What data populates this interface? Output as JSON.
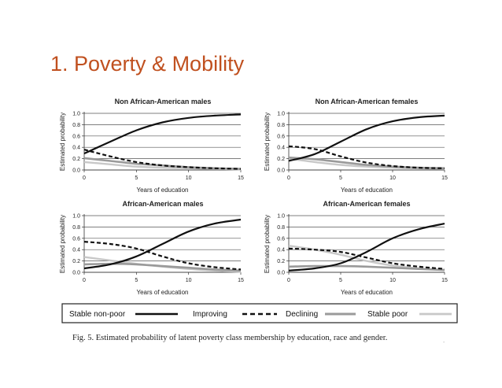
{
  "slide": {
    "title": "1. Poverty & Mobility"
  },
  "caption": "Fig. 5.  Estimated probability of latent poverty class membership by education, race and gender.",
  "fine_print": "-",
  "colors": {
    "stable_non_poor": "#111111",
    "improving": "#111111",
    "declining": "#9a9a9a",
    "stable_poor": "#c8c8c8"
  },
  "legend": [
    {
      "label": "Stable non-poor",
      "key": "stable_non_poor"
    },
    {
      "label": "Improving",
      "key": "improving"
    },
    {
      "label": "Declining",
      "key": "declining"
    },
    {
      "label": "Stable poor",
      "key": "stable_poor"
    }
  ],
  "chart_data": [
    {
      "type": "line",
      "title": "Non African-American males",
      "xlabel": "Years of education",
      "ylabel": "Estimated probability",
      "xlim": [
        0,
        15
      ],
      "ylim": [
        0,
        1
      ],
      "xticks": [
        0,
        5,
        10,
        15
      ],
      "yticks": [
        0.0,
        0.2,
        0.4,
        0.6,
        0.8,
        1.0
      ],
      "x": [
        0,
        2.5,
        5,
        7.5,
        10,
        12.5,
        15
      ],
      "grid": true,
      "series": [
        {
          "key": "stable_non_poor",
          "style": "solid",
          "values": [
            0.29,
            0.5,
            0.7,
            0.84,
            0.92,
            0.96,
            0.98
          ]
        },
        {
          "key": "improving",
          "style": "dashed",
          "values": [
            0.36,
            0.24,
            0.14,
            0.08,
            0.05,
            0.03,
            0.02
          ]
        },
        {
          "key": "declining",
          "style": "solid",
          "values": [
            0.21,
            0.16,
            0.11,
            0.08,
            0.05,
            0.03,
            0.02
          ]
        },
        {
          "key": "stable_poor",
          "style": "solid",
          "values": [
            0.14,
            0.1,
            0.06,
            0.04,
            0.03,
            0.02,
            0.01
          ]
        }
      ]
    },
    {
      "type": "line",
      "title": "Non African-American females",
      "xlabel": "Years of education",
      "ylabel": "Estimated probability",
      "xlim": [
        0,
        15
      ],
      "ylim": [
        0,
        1
      ],
      "xticks": [
        0,
        5,
        10,
        15
      ],
      "yticks": [
        0.0,
        0.2,
        0.4,
        0.6,
        0.8,
        1.0
      ],
      "x": [
        0,
        2.5,
        5,
        7.5,
        10,
        12.5,
        15
      ],
      "grid": true,
      "series": [
        {
          "key": "stable_non_poor",
          "style": "solid",
          "values": [
            0.16,
            0.28,
            0.5,
            0.72,
            0.86,
            0.93,
            0.96
          ]
        },
        {
          "key": "improving",
          "style": "dashed",
          "values": [
            0.42,
            0.37,
            0.24,
            0.13,
            0.07,
            0.04,
            0.03
          ]
        },
        {
          "key": "declining",
          "style": "solid",
          "values": [
            0.22,
            0.19,
            0.14,
            0.09,
            0.06,
            0.04,
            0.03
          ]
        },
        {
          "key": "stable_poor",
          "style": "solid",
          "values": [
            0.2,
            0.14,
            0.09,
            0.06,
            0.04,
            0.03,
            0.02
          ]
        }
      ]
    },
    {
      "type": "line",
      "title": "African-American males",
      "xlabel": "Years of education",
      "ylabel": "Estimated probability",
      "xlim": [
        0,
        15
      ],
      "ylim": [
        0,
        1
      ],
      "xticks": [
        0,
        5,
        10,
        15
      ],
      "yticks": [
        0.0,
        0.2,
        0.4,
        0.6,
        0.8,
        1.0
      ],
      "x": [
        0,
        2.5,
        5,
        7.5,
        10,
        12.5,
        15
      ],
      "grid": true,
      "series": [
        {
          "key": "stable_non_poor",
          "style": "solid",
          "values": [
            0.07,
            0.14,
            0.28,
            0.5,
            0.72,
            0.86,
            0.93
          ]
        },
        {
          "key": "improving",
          "style": "dashed",
          "values": [
            0.54,
            0.5,
            0.42,
            0.28,
            0.16,
            0.09,
            0.05
          ]
        },
        {
          "key": "declining",
          "style": "solid",
          "values": [
            0.14,
            0.15,
            0.14,
            0.11,
            0.08,
            0.05,
            0.03
          ]
        },
        {
          "key": "stable_poor",
          "style": "solid",
          "values": [
            0.27,
            0.21,
            0.15,
            0.1,
            0.06,
            0.03,
            0.01
          ]
        }
      ]
    },
    {
      "type": "line",
      "title": "African-American females",
      "xlabel": "Years of education",
      "ylabel": "Estimated probability",
      "xlim": [
        0,
        15
      ],
      "ylim": [
        0,
        1
      ],
      "xticks": [
        0,
        5,
        10,
        15
      ],
      "yticks": [
        0.0,
        0.2,
        0.4,
        0.6,
        0.8,
        1.0
      ],
      "x": [
        0,
        2.5,
        5,
        7.5,
        10,
        12.5,
        15
      ],
      "grid": true,
      "series": [
        {
          "key": "stable_non_poor",
          "style": "solid",
          "values": [
            0.03,
            0.07,
            0.16,
            0.36,
            0.6,
            0.76,
            0.86
          ]
        },
        {
          "key": "improving",
          "style": "dashed",
          "values": [
            0.42,
            0.4,
            0.36,
            0.26,
            0.16,
            0.1,
            0.06
          ]
        },
        {
          "key": "declining",
          "style": "solid",
          "values": [
            0.1,
            0.11,
            0.11,
            0.1,
            0.08,
            0.06,
            0.04
          ]
        },
        {
          "key": "stable_poor",
          "style": "solid",
          "values": [
            0.47,
            0.4,
            0.31,
            0.2,
            0.12,
            0.07,
            0.04
          ]
        }
      ]
    }
  ]
}
